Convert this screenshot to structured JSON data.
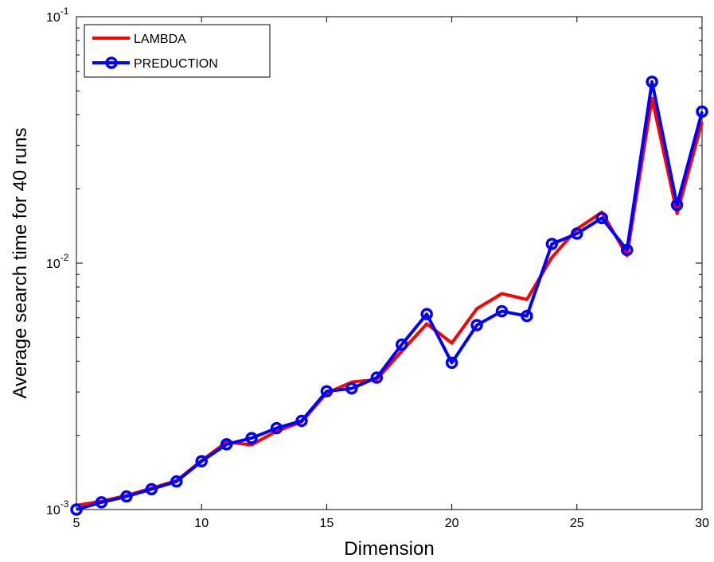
{
  "chart_data": {
    "type": "line",
    "xlabel": "Dimension",
    "ylabel": "Average search time for 40 runs",
    "xlim": [
      5,
      30
    ],
    "ylim": [
      0.001,
      0.1
    ],
    "yscale": "log",
    "grid": false,
    "legend_position": "top-left",
    "x_ticks": [
      5,
      10,
      15,
      20,
      25,
      30
    ],
    "x_tick_labels": [
      "5",
      "10",
      "15",
      "20",
      "25",
      "30"
    ],
    "y_ticks": [
      {
        "value": 0.001,
        "base": "10",
        "exp": "-3"
      },
      {
        "value": 0.01,
        "base": "10",
        "exp": "-2"
      },
      {
        "value": 0.1,
        "base": "10",
        "exp": "-1"
      }
    ],
    "x": [
      5,
      6,
      7,
      8,
      9,
      10,
      11,
      12,
      13,
      14,
      15,
      16,
      17,
      18,
      19,
      20,
      21,
      22,
      23,
      24,
      25,
      26,
      27,
      28,
      29,
      30
    ],
    "series": [
      {
        "name": "LAMBDA",
        "color": "#ff0000",
        "marker": "none",
        "values": [
          0.00104,
          0.00108,
          0.00114,
          0.00122,
          0.00131,
          0.00158,
          0.00188,
          0.00183,
          0.00208,
          0.00227,
          0.00297,
          0.00329,
          0.00337,
          0.00439,
          0.00567,
          0.00474,
          0.00653,
          0.00752,
          0.00712,
          0.01055,
          0.01376,
          0.01609,
          0.01072,
          0.0467,
          0.0159,
          0.0374
        ]
      },
      {
        "name": "PREDUCTION",
        "color": "#0000ff",
        "marker": "circle",
        "values": [
          0.001,
          0.00107,
          0.00113,
          0.00121,
          0.0013,
          0.00157,
          0.00184,
          0.00195,
          0.00214,
          0.00229,
          0.00302,
          0.0031,
          0.00343,
          0.00467,
          0.00621,
          0.00394,
          0.0056,
          0.00638,
          0.0061,
          0.01196,
          0.01317,
          0.01523,
          0.01131,
          0.05445,
          0.01723,
          0.0412
        ]
      }
    ]
  }
}
